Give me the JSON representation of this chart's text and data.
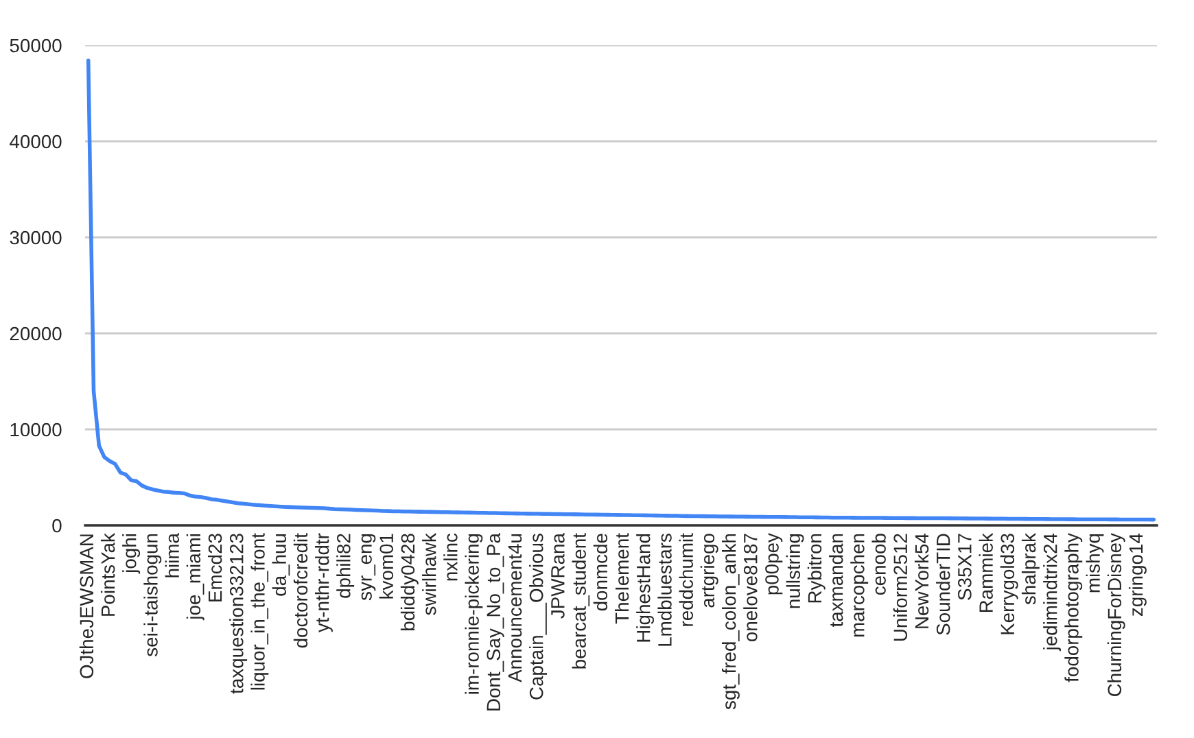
{
  "chart_data": {
    "type": "line",
    "categories": [
      "OJtheJEWSMAN",
      null,
      null,
      null,
      "PointsYak",
      null,
      null,
      null,
      "joghi",
      null,
      null,
      null,
      "sei-i-taishogun",
      null,
      null,
      null,
      "hiima",
      null,
      null,
      null,
      "joe_miami",
      null,
      null,
      null,
      "Emcd23",
      null,
      null,
      null,
      "taxquestion332123",
      null,
      null,
      null,
      "liquor_in_the_front",
      null,
      null,
      null,
      "da_huu",
      null,
      null,
      null,
      "doctorofcredit",
      null,
      null,
      null,
      "yt-nthr-rddtr",
      null,
      null,
      null,
      "dphili82",
      null,
      null,
      null,
      "syr_eng",
      null,
      null,
      null,
      "kvom01",
      null,
      null,
      null,
      "bdiddy0428",
      null,
      null,
      null,
      "swirlhawk",
      null,
      null,
      null,
      "nxlinc",
      null,
      null,
      null,
      "im-ronnie-pickering",
      null,
      null,
      null,
      "Dont_Say_No_to_Pa",
      null,
      null,
      null,
      "Announcement4u",
      null,
      null,
      null,
      "Captain___Obvious",
      null,
      null,
      null,
      "JPWRana",
      null,
      null,
      null,
      "bearcat_student",
      null,
      null,
      null,
      "donmcde",
      null,
      null,
      null,
      "TheIement",
      null,
      null,
      null,
      "HighestHand",
      null,
      null,
      null,
      "Lmdbluestars",
      null,
      null,
      null,
      "reddchumit",
      null,
      null,
      null,
      "artgriego",
      null,
      null,
      null,
      "sgt_fred_colon_ankh",
      null,
      null,
      null,
      "onelove8187",
      null,
      null,
      null,
      "p00pey",
      null,
      null,
      null,
      "nullstring",
      null,
      null,
      null,
      "Rybitron",
      null,
      null,
      null,
      "taxmandan",
      null,
      null,
      null,
      "marcopchen",
      null,
      null,
      null,
      "cenoob",
      null,
      null,
      null,
      "Uniform2512",
      null,
      null,
      null,
      "NewYork54",
      null,
      null,
      null,
      "SounderTID",
      null,
      null,
      null,
      "S35X17",
      null,
      null,
      null,
      "Rammiek",
      null,
      null,
      null,
      "Kerrygold33",
      null,
      null,
      null,
      "shalprak",
      null,
      null,
      null,
      "jedimindtrix24",
      null,
      null,
      null,
      "fodorphotography",
      null,
      null,
      null,
      "mishyq",
      null,
      null,
      null,
      "ChurningForDisney",
      null,
      null,
      null,
      "zgringo14",
      null,
      null,
      null
    ],
    "series": [
      {
        "color": "#4285f4",
        "values": [
          48400,
          14000,
          8300,
          7100,
          6700,
          6400,
          5500,
          5300,
          4700,
          4600,
          4150,
          3900,
          3750,
          3620,
          3520,
          3480,
          3400,
          3380,
          3320,
          3100,
          3000,
          2950,
          2860,
          2720,
          2670,
          2570,
          2480,
          2400,
          2300,
          2250,
          2200,
          2150,
          2100,
          2060,
          2020,
          1980,
          1950,
          1920,
          1900,
          1880,
          1860,
          1840,
          1820,
          1800,
          1780,
          1740,
          1700,
          1680,
          1660,
          1640,
          1610,
          1590,
          1570,
          1550,
          1530,
          1500,
          1490,
          1470,
          1460,
          1450,
          1440,
          1430,
          1420,
          1410,
          1400,
          1390,
          1380,
          1370,
          1360,
          1350,
          1340,
          1330,
          1320,
          1310,
          1300,
          1290,
          1280,
          1270,
          1260,
          1250,
          1240,
          1235,
          1225,
          1215,
          1210,
          1200,
          1190,
          1185,
          1175,
          1165,
          1160,
          1150,
          1140,
          1130,
          1125,
          1115,
          1105,
          1100,
          1090,
          1080,
          1075,
          1065,
          1060,
          1050,
          1045,
          1035,
          1025,
          1020,
          1010,
          1000,
          995,
          985,
          975,
          970,
          960,
          955,
          945,
          940,
          930,
          925,
          920,
          915,
          910,
          900,
          895,
          890,
          885,
          880,
          875,
          870,
          865,
          860,
          855,
          845,
          840,
          835,
          830,
          825,
          815,
          810,
          805,
          800,
          800,
          795,
          790,
          790,
          785,
          780,
          780,
          775,
          770,
          770,
          765,
          760,
          760,
          755,
          750,
          750,
          750,
          750,
          745,
          740,
          735,
          730,
          725,
          720,
          715,
          710,
          705,
          700,
          695,
          690,
          685,
          680,
          675,
          670,
          665,
          660,
          655,
          650,
          640,
          638,
          636,
          634,
          632,
          630,
          628,
          626,
          624,
          622,
          620,
          618,
          616,
          614,
          612,
          610,
          608,
          606,
          603,
          600
        ]
      }
    ],
    "ylim": [
      0,
      50000
    ],
    "yticks": [
      0,
      10000,
      20000,
      30000,
      40000,
      50000
    ],
    "grid": "y",
    "marker": "none",
    "line_style": "solid"
  }
}
